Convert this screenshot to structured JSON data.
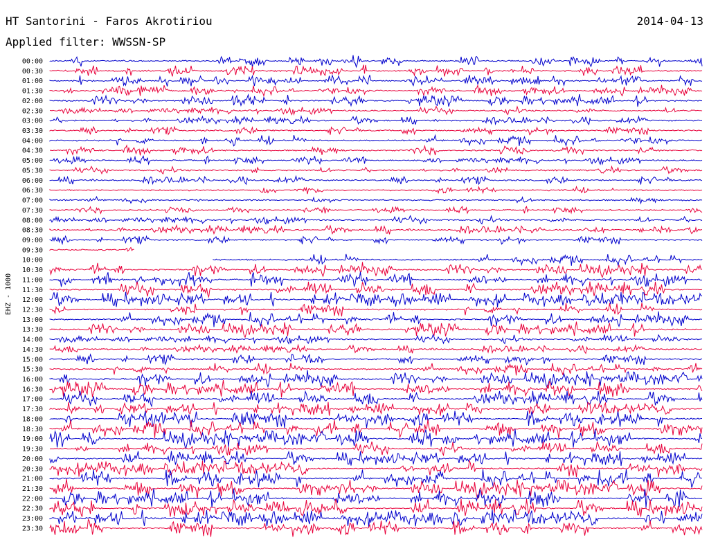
{
  "header": {
    "station": "HT Santorini - Faros Akrotiriou",
    "date": "2014-04-13",
    "filter_label": "Applied filter: WWSSN-SP"
  },
  "channel_label": "EHZ - 1000",
  "colors": {
    "trace_a": "#0000cc",
    "trace_b": "#e8003a",
    "text": "#000000",
    "background": "#ffffff"
  },
  "chart_data": {
    "type": "line",
    "title": "HT Santorini - Faros Akrotiriou",
    "xlabel": "",
    "ylabel": "EHZ - 1000",
    "grid": false,
    "legend": "none",
    "x_minutes_per_line": 30,
    "row_labels": [
      "00:00",
      "00:30",
      "01:00",
      "01:30",
      "02:00",
      "02:30",
      "03:00",
      "03:30",
      "04:00",
      "04:30",
      "05:00",
      "05:30",
      "06:00",
      "06:30",
      "07:00",
      "07:30",
      "08:00",
      "08:30",
      "09:00",
      "09:30",
      "10:00",
      "10:30",
      "11:00",
      "11:30",
      "12:00",
      "12:30",
      "13:00",
      "13:30",
      "14:00",
      "14:30",
      "15:00",
      "15:30",
      "16:00",
      "16:30",
      "17:00",
      "17:30",
      "18:00",
      "18:30",
      "19:00",
      "19:30",
      "20:00",
      "20:30",
      "21:00",
      "21:30",
      "22:00",
      "22:30",
      "23:00",
      "23:30"
    ],
    "activity_level": [
      0.45,
      0.4,
      0.4,
      0.35,
      0.45,
      0.2,
      0.2,
      0.2,
      0.35,
      0.3,
      0.2,
      0.15,
      0.2,
      0.12,
      0.12,
      0.12,
      0.2,
      0.25,
      0.2,
      0.1,
      0.4,
      0.55,
      0.6,
      0.65,
      0.65,
      0.5,
      0.6,
      0.6,
      0.25,
      0.2,
      0.35,
      0.45,
      0.7,
      0.75,
      0.65,
      0.55,
      0.75,
      0.8,
      0.8,
      0.55,
      0.6,
      0.7,
      0.85,
      0.85,
      0.85,
      0.8,
      0.8,
      0.7
    ],
    "line_coverage": [
      [
        0,
        1
      ],
      [
        0,
        1
      ],
      [
        0,
        1
      ],
      [
        0,
        1
      ],
      [
        0,
        1
      ],
      [
        0,
        1
      ],
      [
        0,
        1
      ],
      [
        0,
        1
      ],
      [
        0,
        1
      ],
      [
        0,
        1
      ],
      [
        0,
        1
      ],
      [
        0,
        1
      ],
      [
        0,
        1
      ],
      [
        0,
        1
      ],
      [
        0,
        1
      ],
      [
        0,
        1
      ],
      [
        0,
        1
      ],
      [
        0,
        1
      ],
      [
        0,
        1
      ],
      [
        0,
        0.13
      ],
      [
        0.25,
        1
      ],
      [
        0,
        1
      ],
      [
        0,
        1
      ],
      [
        0,
        1
      ],
      [
        0,
        1
      ],
      [
        0,
        1
      ],
      [
        0,
        1
      ],
      [
        0,
        1
      ],
      [
        0,
        1
      ],
      [
        0,
        1
      ],
      [
        0,
        1
      ],
      [
        0,
        1
      ],
      [
        0,
        1
      ],
      [
        0,
        1
      ],
      [
        0,
        1
      ],
      [
        0,
        1
      ],
      [
        0,
        1
      ],
      [
        0,
        1
      ],
      [
        0,
        1
      ],
      [
        0,
        1
      ],
      [
        0,
        1
      ],
      [
        0,
        1
      ],
      [
        0,
        1
      ],
      [
        0,
        1
      ],
      [
        0,
        1
      ],
      [
        0,
        1
      ],
      [
        0,
        1
      ],
      [
        0,
        1
      ]
    ]
  }
}
